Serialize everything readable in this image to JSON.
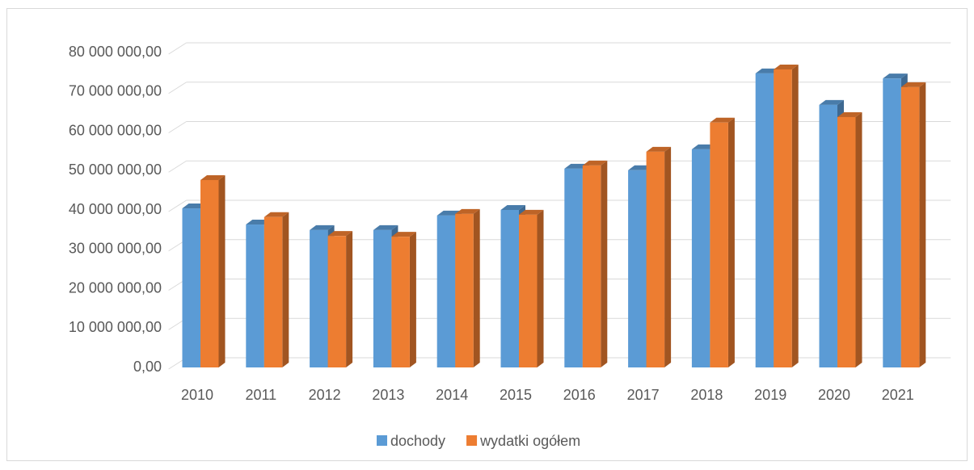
{
  "chart_data": {
    "type": "bar3d",
    "categories": [
      "2010",
      "2011",
      "2012",
      "2013",
      "2014",
      "2015",
      "2016",
      "2017",
      "2018",
      "2019",
      "2020",
      "2021"
    ],
    "series": [
      {
        "name": "dochody",
        "color": "#5b9bd5",
        "values": [
          40400000,
          36300000,
          34900000,
          34900000,
          38600000,
          40000000,
          50500000,
          50100000,
          55400000,
          74700000,
          66700000,
          73400000
        ]
      },
      {
        "name": "wydatki ogółem",
        "color": "#ed7d31",
        "values": [
          47600000,
          38200000,
          33400000,
          33200000,
          39000000,
          38800000,
          51300000,
          54800000,
          62200000,
          75700000,
          63600000,
          71200000
        ]
      }
    ],
    "ylim": [
      0,
      80000000
    ],
    "yticks": [
      {
        "value": 0,
        "label": "0,00"
      },
      {
        "value": 10000000,
        "label": "10 000 000,00"
      },
      {
        "value": 20000000,
        "label": "20 000 000,00"
      },
      {
        "value": 30000000,
        "label": "30 000 000,00"
      },
      {
        "value": 40000000,
        "label": "40 000 000,00"
      },
      {
        "value": 50000000,
        "label": "50 000 000,00"
      },
      {
        "value": 60000000,
        "label": "60 000 000,00"
      },
      {
        "value": 70000000,
        "label": "70 000 000,00"
      },
      {
        "value": 80000000,
        "label": "80 000 000,00"
      }
    ],
    "grid": true,
    "legend": "bottom"
  }
}
